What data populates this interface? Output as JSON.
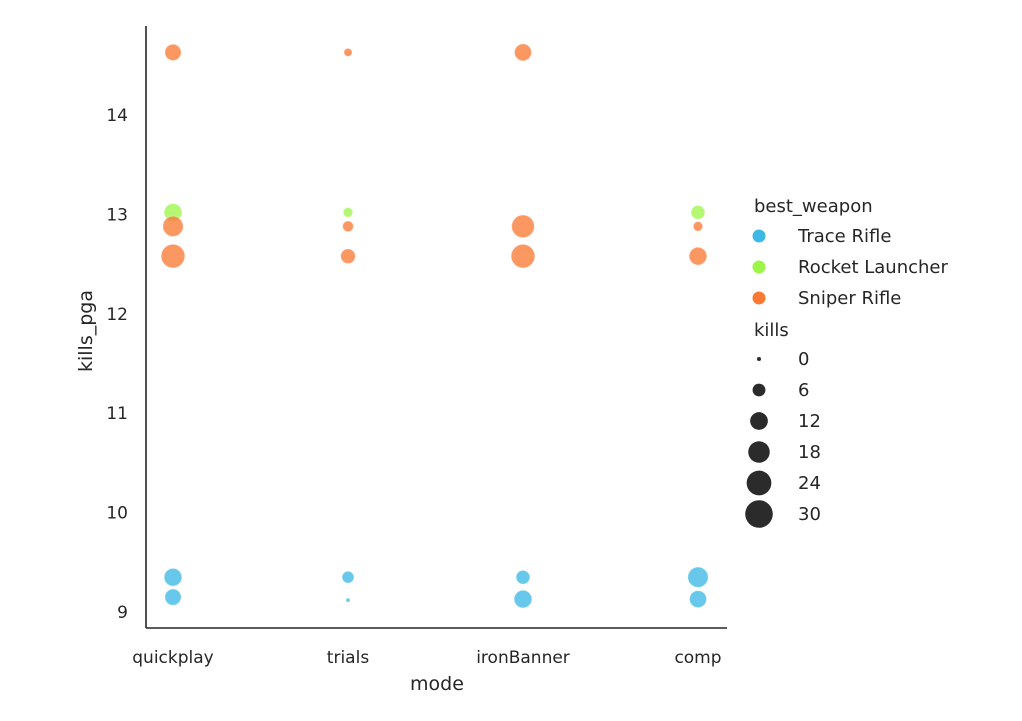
{
  "chart_data": {
    "type": "scatter",
    "xlabel": "mode",
    "ylabel": "kills_pga",
    "categories": [
      "quickplay",
      "trials",
      "ironBanner",
      "comp"
    ],
    "ylim": [
      8.85,
      14.95
    ],
    "yticks": [
      9,
      10,
      11,
      12,
      13,
      14
    ],
    "grid": false,
    "legend_position": "right",
    "hue_legend": {
      "title": "best_weapon",
      "entries": [
        {
          "name": "Trace Rifle",
          "color": "#3eb8e5"
        },
        {
          "name": "Rocket Launcher",
          "color": "#9ef54a"
        },
        {
          "name": "Sniper Rifle",
          "color": "#fa7a35"
        }
      ]
    },
    "size_legend": {
      "title": "kills",
      "entries": [
        {
          "label": "0",
          "value": 0
        },
        {
          "label": "6",
          "value": 6
        },
        {
          "label": "12",
          "value": 12
        },
        {
          "label": "18",
          "value": 18
        },
        {
          "label": "24",
          "value": 24
        },
        {
          "label": "30",
          "value": 30
        }
      ]
    },
    "series": [
      {
        "name": "Trace Rifle",
        "points": [
          {
            "x": "quickplay",
            "y": 9.35,
            "kills": 12
          },
          {
            "x": "quickplay",
            "y": 9.15,
            "kills": 10
          },
          {
            "x": "trials",
            "y": 9.35,
            "kills": 5
          },
          {
            "x": "trials",
            "y": 9.12,
            "kills": 0
          },
          {
            "x": "ironBanner",
            "y": 9.35,
            "kills": 7
          },
          {
            "x": "ironBanner",
            "y": 9.13,
            "kills": 12
          },
          {
            "x": "comp",
            "y": 9.35,
            "kills": 16
          },
          {
            "x": "comp",
            "y": 9.13,
            "kills": 11
          }
        ]
      },
      {
        "name": "Rocket Launcher",
        "points": [
          {
            "x": "quickplay",
            "y": 13.02,
            "kills": 12
          },
          {
            "x": "trials",
            "y": 13.02,
            "kills": 3
          },
          {
            "x": "comp",
            "y": 13.02,
            "kills": 7
          }
        ]
      },
      {
        "name": "Sniper Rifle",
        "points": [
          {
            "x": "quickplay",
            "y": 14.63,
            "kills": 10
          },
          {
            "x": "quickplay",
            "y": 12.88,
            "kills": 16
          },
          {
            "x": "quickplay",
            "y": 12.58,
            "kills": 22
          },
          {
            "x": "trials",
            "y": 14.63,
            "kills": 2
          },
          {
            "x": "trials",
            "y": 12.88,
            "kills": 4
          },
          {
            "x": "trials",
            "y": 12.58,
            "kills": 8
          },
          {
            "x": "ironBanner",
            "y": 14.63,
            "kills": 11
          },
          {
            "x": "ironBanner",
            "y": 12.88,
            "kills": 20
          },
          {
            "x": "ironBanner",
            "y": 12.58,
            "kills": 22
          },
          {
            "x": "comp",
            "y": 12.88,
            "kills": 3
          },
          {
            "x": "comp",
            "y": 12.58,
            "kills": 12
          }
        ]
      }
    ]
  }
}
